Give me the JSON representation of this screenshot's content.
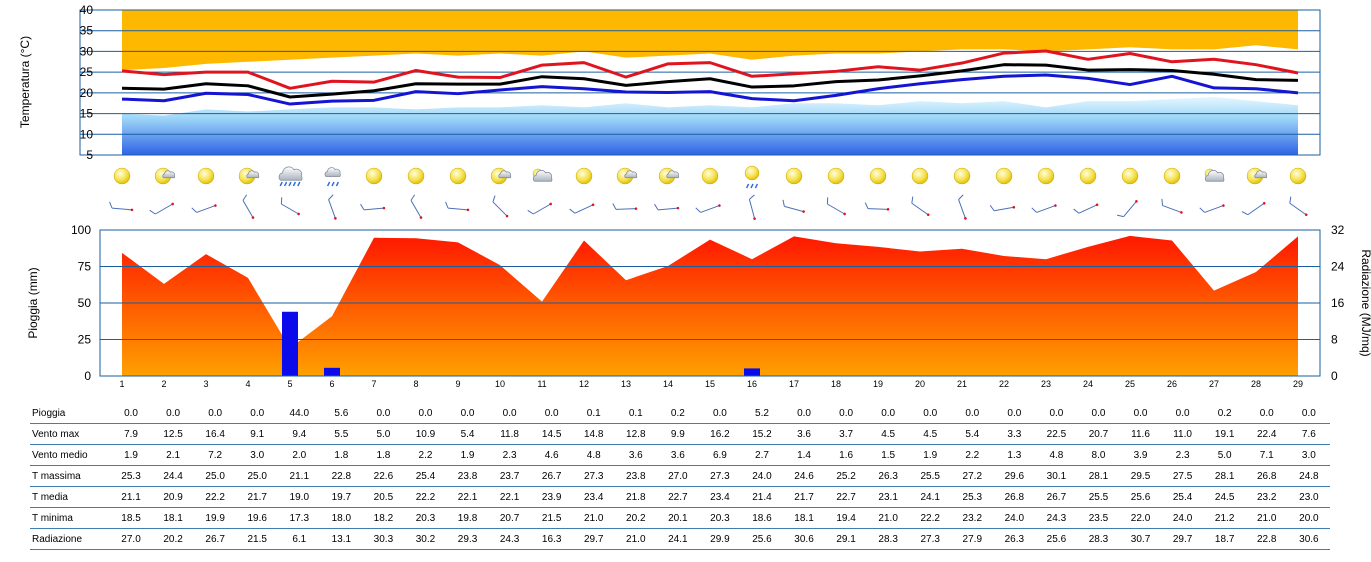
{
  "chart_data": {
    "days": [
      "1",
      "2",
      "3",
      "4",
      "5",
      "6",
      "7",
      "8",
      "9",
      "10",
      "11",
      "12",
      "13",
      "14",
      "15",
      "16",
      "17",
      "18",
      "19",
      "20",
      "21",
      "22",
      "23",
      "24",
      "25",
      "26",
      "27",
      "28",
      "29"
    ],
    "temperature": {
      "type": "line",
      "ylabel": "Temperatura (°C)",
      "ylim": [
        5,
        40
      ],
      "yticks": [
        "5",
        "10",
        "15",
        "20",
        "25",
        "30",
        "35",
        "40"
      ],
      "series": [
        {
          "name": "T massima",
          "color": "#e0141e",
          "values": [
            25.3,
            24.4,
            25.0,
            25.0,
            21.1,
            22.8,
            22.6,
            25.4,
            23.8,
            23.7,
            26.7,
            27.3,
            23.8,
            27.0,
            27.3,
            24.0,
            24.6,
            25.2,
            26.3,
            25.5,
            27.2,
            29.6,
            30.1,
            28.1,
            29.5,
            27.5,
            28.1,
            26.8,
            24.8
          ]
        },
        {
          "name": "T media",
          "color": "#000000",
          "values": [
            21.1,
            20.9,
            22.2,
            21.7,
            19.0,
            19.7,
            20.5,
            22.2,
            22.1,
            22.1,
            23.9,
            23.4,
            21.8,
            22.7,
            23.4,
            21.4,
            21.7,
            22.7,
            23.1,
            24.1,
            25.3,
            26.8,
            26.7,
            25.5,
            25.6,
            25.4,
            24.5,
            23.2,
            23.0
          ]
        },
        {
          "name": "T minima",
          "color": "#1414d2",
          "values": [
            18.5,
            18.1,
            19.9,
            19.6,
            17.3,
            18.0,
            18.2,
            20.3,
            19.8,
            20.7,
            21.5,
            21.0,
            20.2,
            20.1,
            20.3,
            18.6,
            18.1,
            19.4,
            21.0,
            22.2,
            23.2,
            24.0,
            24.3,
            23.5,
            22.0,
            24.0,
            21.2,
            21.0,
            20.0
          ]
        }
      ],
      "upper_band_bottom": [
        25.5,
        26.0,
        27.0,
        27.5,
        28.0,
        28.5,
        29.0,
        29.5,
        29.0,
        29.5,
        29.0,
        30.0,
        28.5,
        29.0,
        29.5,
        28.0,
        29.0,
        29.5,
        29.5,
        30.0,
        30.5,
        30.5,
        30.0,
        30.5,
        31.0,
        30.5,
        30.5,
        31.5,
        30.5
      ],
      "lower_band_top": [
        15.0,
        14.5,
        16.0,
        15.5,
        16.0,
        16.5,
        16.5,
        16.0,
        16.5,
        16.5,
        17.0,
        16.5,
        17.5,
        16.5,
        17.0,
        16.5,
        17.5,
        17.5,
        17.0,
        18.0,
        17.5,
        18.0,
        16.5,
        18.0,
        18.0,
        18.5,
        19.0,
        18.0,
        17.0
      ]
    },
    "weather_icons": [
      "sun",
      "sun-cloud",
      "sun",
      "sun-cloud",
      "rain",
      "cloud-rain",
      "sun",
      "sun",
      "sun",
      "sun-cloud",
      "cloud",
      "sun",
      "sun-cloud",
      "sun-cloud",
      "sun",
      "sun-rain",
      "sun",
      "sun",
      "sun",
      "sun",
      "sun",
      "sun",
      "sun",
      "sun",
      "sun",
      "sun",
      "cloud",
      "sun-cloud",
      "sun"
    ],
    "wind_dir_deg": [
      95,
      60,
      70,
      150,
      120,
      160,
      85,
      150,
      95,
      135,
      60,
      65,
      88,
      85,
      70,
      165,
      105,
      120,
      92,
      125,
      160,
      80,
      70,
      65,
      40,
      110,
      70,
      55,
      125
    ],
    "rain_radiation": {
      "type": "bar",
      "left_ylabel": "Pioggia (mm)",
      "right_ylabel": "Radiazione (MJ/mq)",
      "left_ylim": [
        0,
        100
      ],
      "left_yticks": [
        "0",
        "25",
        "50",
        "75",
        "100"
      ],
      "right_ylim": [
        0,
        32
      ],
      "right_yticks": [
        "0",
        "8",
        "16",
        "24",
        "32"
      ],
      "rain_color": "#0a0aeb"
    },
    "table": {
      "rows": [
        {
          "label": "Pioggia",
          "values": [
            "0.0",
            "0.0",
            "0.0",
            "0.0",
            "44.0",
            "5.6",
            "0.0",
            "0.0",
            "0.0",
            "0.0",
            "0.0",
            "0.1",
            "0.1",
            "0.2",
            "0.0",
            "5.2",
            "0.0",
            "0.0",
            "0.0",
            "0.0",
            "0.0",
            "0.0",
            "0.0",
            "0.0",
            "0.0",
            "0.0",
            "0.2",
            "0.0",
            "0.0"
          ]
        },
        {
          "label": "Vento max",
          "values": [
            "7.9",
            "12.5",
            "16.4",
            "9.1",
            "9.4",
            "5.5",
            "5.0",
            "10.9",
            "5.4",
            "11.8",
            "14.5",
            "14.8",
            "12.8",
            "9.9",
            "16.2",
            "15.2",
            "3.6",
            "3.7",
            "4.5",
            "4.5",
            "5.4",
            "3.3",
            "22.5",
            "20.7",
            "11.6",
            "11.0",
            "19.1",
            "22.4",
            "7.6"
          ]
        },
        {
          "label": "Vento medio",
          "values": [
            "1.9",
            "2.1",
            "7.2",
            "3.0",
            "2.0",
            "1.8",
            "1.8",
            "2.2",
            "1.9",
            "2.3",
            "4.6",
            "4.8",
            "3.6",
            "3.6",
            "6.9",
            "2.7",
            "1.4",
            "1.6",
            "1.5",
            "1.9",
            "2.2",
            "1.3",
            "4.8",
            "8.0",
            "3.9",
            "2.3",
            "5.0",
            "7.1",
            "3.0"
          ]
        },
        {
          "label": "T massima",
          "values": [
            "25.3",
            "24.4",
            "25.0",
            "25.0",
            "21.1",
            "22.8",
            "22.6",
            "25.4",
            "23.8",
            "23.7",
            "26.7",
            "27.3",
            "23.8",
            "27.0",
            "27.3",
            "24.0",
            "24.6",
            "25.2",
            "26.3",
            "25.5",
            "27.2",
            "29.6",
            "30.1",
            "28.1",
            "29.5",
            "27.5",
            "28.1",
            "26.8",
            "24.8"
          ]
        },
        {
          "label": "T media",
          "values": [
            "21.1",
            "20.9",
            "22.2",
            "21.7",
            "19.0",
            "19.7",
            "20.5",
            "22.2",
            "22.1",
            "22.1",
            "23.9",
            "23.4",
            "21.8",
            "22.7",
            "23.4",
            "21.4",
            "21.7",
            "22.7",
            "23.1",
            "24.1",
            "25.3",
            "26.8",
            "26.7",
            "25.5",
            "25.6",
            "25.4",
            "24.5",
            "23.2",
            "23.0"
          ]
        },
        {
          "label": "T minima",
          "values": [
            "18.5",
            "18.1",
            "19.9",
            "19.6",
            "17.3",
            "18.0",
            "18.2",
            "20.3",
            "19.8",
            "20.7",
            "21.5",
            "21.0",
            "20.2",
            "20.1",
            "20.3",
            "18.6",
            "18.1",
            "19.4",
            "21.0",
            "22.2",
            "23.2",
            "24.0",
            "24.3",
            "23.5",
            "22.0",
            "24.0",
            "21.2",
            "21.0",
            "20.0"
          ]
        },
        {
          "label": "Radiazione",
          "values": [
            "27.0",
            "20.2",
            "26.7",
            "21.5",
            "6.1",
            "13.1",
            "30.3",
            "30.2",
            "29.3",
            "24.3",
            "16.3",
            "29.7",
            "21.0",
            "24.1",
            "29.9",
            "25.6",
            "30.6",
            "29.1",
            "28.3",
            "27.3",
            "27.9",
            "26.3",
            "25.6",
            "28.3",
            "30.7",
            "29.7",
            "18.7",
            "22.8",
            "30.6"
          ]
        }
      ]
    }
  }
}
